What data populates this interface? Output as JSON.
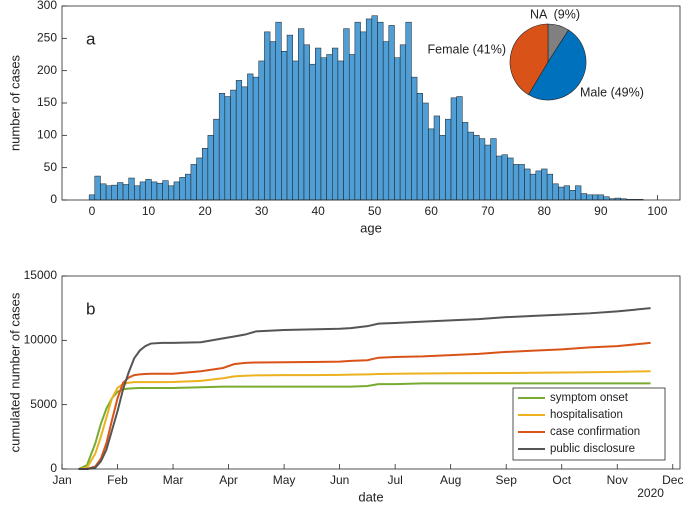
{
  "chart_data": [
    {
      "type": "histogram",
      "panel_label": "a",
      "xlabel": "age",
      "ylabel": "number of cases",
      "color": "#4f9fd6",
      "bins": [
        -0.5,
        0.5,
        1.5,
        2.5,
        3.5,
        4.5,
        5.5,
        6.5,
        7.5,
        8.5,
        9.5,
        10.5,
        11.5,
        12.5,
        13.5,
        14.5,
        15.5,
        16.5,
        17.5,
        18.5,
        19.5,
        20.5,
        21.5,
        22.5,
        23.5,
        24.5,
        25.5,
        26.5,
        27.5,
        28.5,
        29.5,
        30.5,
        31.5,
        32.5,
        33.5,
        34.5,
        35.5,
        36.5,
        37.5,
        38.5,
        39.5,
        40.5,
        41.5,
        42.5,
        43.5,
        44.5,
        45.5,
        46.5,
        47.5,
        48.5,
        49.5,
        50.5,
        51.5,
        52.5,
        53.5,
        54.5,
        55.5,
        56.5,
        57.5,
        58.5,
        59.5,
        60.5,
        61.5,
        62.5,
        63.5,
        64.5,
        65.5,
        66.5,
        67.5,
        68.5,
        69.5,
        70.5,
        71.5,
        72.5,
        73.5,
        74.5,
        75.5,
        76.5,
        77.5,
        78.5,
        79.5,
        80.5,
        81.5,
        82.5,
        83.5,
        84.5,
        85.5,
        86.5,
        87.5,
        88.5,
        89.5,
        90.5,
        91.5,
        92.5,
        93.5,
        94.5,
        95.5,
        96.5,
        97.5
      ],
      "values": [
        8,
        37,
        25,
        22,
        23,
        27,
        24,
        34,
        22,
        28,
        32,
        28,
        26,
        30,
        22,
        28,
        35,
        40,
        55,
        65,
        80,
        100,
        125,
        165,
        160,
        170,
        185,
        175,
        195,
        190,
        215,
        260,
        245,
        275,
        230,
        255,
        215,
        265,
        240,
        210,
        235,
        220,
        225,
        235,
        215,
        265,
        225,
        275,
        260,
        280,
        285,
        275,
        245,
        270,
        220,
        240,
        275,
        190,
        165,
        150,
        110,
        130,
        100,
        125,
        158,
        160,
        120,
        105,
        100,
        95,
        85,
        95,
        68,
        70,
        65,
        55,
        55,
        48,
        40,
        45,
        48,
        40,
        25,
        20,
        22,
        15,
        22,
        10,
        8,
        8,
        8,
        5,
        2,
        3,
        2,
        1,
        1,
        1
      ],
      "xlim": [
        -5.3,
        104
      ],
      "xticks": [
        0,
        10,
        20,
        30,
        40,
        50,
        60,
        70,
        80,
        90,
        100
      ],
      "ylim": [
        0,
        300
      ],
      "yticks": [
        0,
        50,
        100,
        150,
        200,
        250,
        300
      ]
    },
    {
      "type": "pie",
      "categories": [
        "NA",
        "Male",
        "Female"
      ],
      "values": [
        9,
        49,
        41
      ],
      "value_labels": [
        "NA  (9%)",
        "Male (49%)",
        "Female (41%)"
      ],
      "colors": [
        "#808080",
        "#0072bd",
        "#d95319"
      ]
    },
    {
      "type": "line",
      "panel_label": "b",
      "xlabel": "date",
      "ylabel": "cumulated number of cases",
      "annotation": "2020",
      "legend": "lower right",
      "x": [
        1.3,
        1.45,
        1.6,
        1.7,
        1.8,
        1.9,
        2.0,
        2.1,
        2.2,
        2.3,
        2.4,
        2.5,
        2.6,
        2.8,
        3.0,
        3.5,
        3.9,
        4.1,
        4.3,
        4.5,
        5,
        5.5,
        6,
        6.2,
        6.5,
        6.7,
        7,
        7.5,
        8,
        8.5,
        9,
        9.5,
        10,
        10.5,
        11,
        11.6
      ],
      "series": [
        {
          "name": "symptom onset",
          "color": "#77ac30",
          "values": [
            0,
            300,
            2000,
            3500,
            4700,
            5500,
            6000,
            6200,
            6250,
            6280,
            6300,
            6300,
            6300,
            6300,
            6300,
            6350,
            6400,
            6400,
            6400,
            6400,
            6400,
            6400,
            6400,
            6400,
            6450,
            6600,
            6600,
            6650,
            6650,
            6650,
            6650,
            6650,
            6650,
            6650,
            6650,
            6650
          ]
        },
        {
          "name": "hospitalisation",
          "color": "#edb120",
          "values": [
            0,
            100,
            1200,
            2500,
            4000,
            5500,
            6300,
            6600,
            6700,
            6750,
            6750,
            6750,
            6750,
            6750,
            6760,
            6850,
            7050,
            7200,
            7250,
            7280,
            7300,
            7300,
            7320,
            7330,
            7350,
            7380,
            7400,
            7420,
            7440,
            7450,
            7460,
            7480,
            7500,
            7520,
            7550,
            7600
          ]
        },
        {
          "name": "case confirmation",
          "color": "#d95319",
          "values": [
            0,
            0,
            200,
            800,
            2000,
            3800,
            5500,
            6700,
            7100,
            7300,
            7350,
            7380,
            7400,
            7400,
            7400,
            7600,
            7850,
            8150,
            8250,
            8280,
            8300,
            8320,
            8350,
            8400,
            8450,
            8650,
            8700,
            8750,
            8850,
            8950,
            9100,
            9200,
            9300,
            9450,
            9550,
            9800
          ]
        },
        {
          "name": "public disclosure",
          "color": "#555555",
          "values": [
            0,
            0,
            100,
            600,
            1500,
            3000,
            4500,
            6200,
            7500,
            8600,
            9200,
            9550,
            9750,
            9800,
            9800,
            9850,
            10150,
            10300,
            10450,
            10700,
            10800,
            10850,
            10900,
            10950,
            11100,
            11300,
            11350,
            11450,
            11550,
            11650,
            11800,
            11900,
            12000,
            12100,
            12250,
            12500
          ]
        }
      ],
      "xlim": [
        1,
        12.13
      ],
      "xticks": [
        {
          "value": 1,
          "label": "Jan"
        },
        {
          "value": 2,
          "label": "Feb"
        },
        {
          "value": 3,
          "label": "Mar"
        },
        {
          "value": 4,
          "label": "Apr"
        },
        {
          "value": 5,
          "label": "May"
        },
        {
          "value": 6,
          "label": "Jun"
        },
        {
          "value": 7,
          "label": "Jul"
        },
        {
          "value": 8,
          "label": "Aug"
        },
        {
          "value": 9,
          "label": "Sep"
        },
        {
          "value": 10,
          "label": "Oct"
        },
        {
          "value": 11,
          "label": "Nov"
        },
        {
          "value": 12,
          "label": "Dec"
        }
      ],
      "ylim": [
        0,
        15000
      ],
      "yticks": [
        0,
        5000,
        10000,
        15000
      ]
    }
  ]
}
